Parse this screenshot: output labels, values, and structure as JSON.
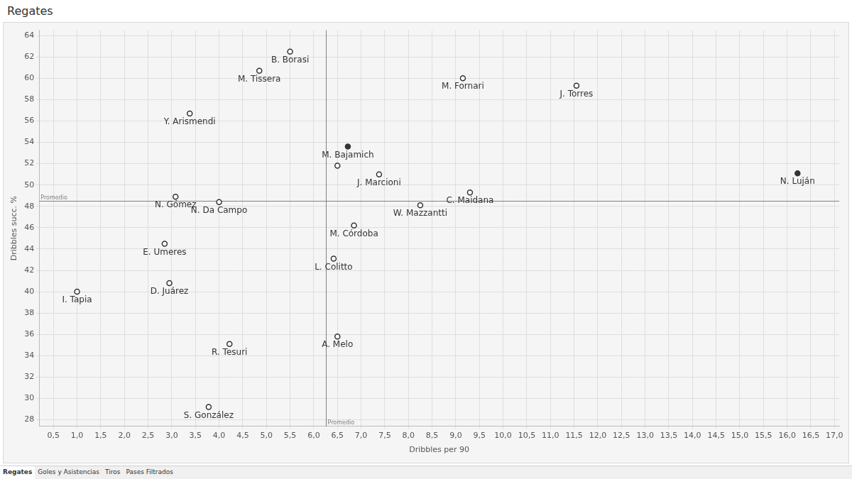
{
  "chart_data": {
    "type": "scatter",
    "title": "Regates",
    "x_label": "Dribbles per 90",
    "y_label": "Dribbles succ. %",
    "x": [
      5.5,
      4.85,
      9.15,
      11.55,
      3.38,
      6.72,
      6.5,
      7.38,
      16.22,
      9.3,
      3.08,
      4.0,
      8.25,
      6.85,
      2.85,
      6.42,
      1.0,
      2.95,
      6.5,
      4.22,
      3.78
    ],
    "values": [
      62.5,
      60.7,
      60.0,
      59.3,
      56.7,
      53.6,
      51.8,
      51.0,
      51.1,
      49.3,
      48.9,
      48.4,
      48.1,
      46.2,
      44.5,
      43.1,
      40.0,
      40.8,
      35.8,
      35.1,
      29.2
    ],
    "point_labels": [
      "B. Borasi",
      "M. Tissera",
      "M. Fornari",
      "J. Torres",
      "Y. Arismendi",
      "M. Bajamich",
      null,
      "J. Marcioni",
      "N. Luján",
      "C. Maidana",
      "N. Gómez",
      "N. Da Campo",
      "W. Mazzantti",
      "M. Córdoba",
      "E. Umeres",
      "L. Colitto",
      "I. Tapia",
      "D. Juárez",
      "A. Melo",
      "R. Tesuri",
      "S. González"
    ],
    "color": "#333333",
    "colors": [
      "#ffffff",
      "#ffffff",
      "#ffffff",
      "#ffffff",
      "#ffffff",
      "#333333",
      "#ffffff",
      "#ffffff",
      "#333333",
      "#ffffff",
      "#ffffff",
      "#ffffff",
      "#ffffff",
      "#ffffff",
      "#ffffff",
      "#ffffff",
      "#ffffff",
      "#ffffff",
      "#ffffff",
      "#ffffff",
      "#ffffff"
    ],
    "marker": "circle",
    "xlim": [
      0.2,
      17.1
    ],
    "ylim": [
      27.4,
      64.5
    ],
    "xticks": [
      {
        "value": 0.5,
        "label": "0,5"
      },
      {
        "value": 1.0,
        "label": "1,0"
      },
      {
        "value": 1.5,
        "label": "1,5"
      },
      {
        "value": 2.0,
        "label": "2,0"
      },
      {
        "value": 2.5,
        "label": "2,5"
      },
      {
        "value": 3.0,
        "label": "3,0"
      },
      {
        "value": 3.5,
        "label": "3,5"
      },
      {
        "value": 4.0,
        "label": "4,0"
      },
      {
        "value": 4.5,
        "label": "4,5"
      },
      {
        "value": 5.0,
        "label": "5,0"
      },
      {
        "value": 5.5,
        "label": "5,5"
      },
      {
        "value": 6.0,
        "label": "6,0"
      },
      {
        "value": 6.5,
        "label": "6,5"
      },
      {
        "value": 7.0,
        "label": "7,0"
      },
      {
        "value": 7.5,
        "label": "7,5"
      },
      {
        "value": 8.0,
        "label": "8,0"
      },
      {
        "value": 8.5,
        "label": "8,5"
      },
      {
        "value": 9.0,
        "label": "9,0"
      },
      {
        "value": 9.5,
        "label": "9,5"
      },
      {
        "value": 10.0,
        "label": "10,0"
      },
      {
        "value": 10.5,
        "label": "10,5"
      },
      {
        "value": 11.0,
        "label": "11,0"
      },
      {
        "value": 11.5,
        "label": "11,5"
      },
      {
        "value": 12.0,
        "label": "12,0"
      },
      {
        "value": 12.5,
        "label": "12,5"
      },
      {
        "value": 13.0,
        "label": "13,0"
      },
      {
        "value": 13.5,
        "label": "13,5"
      },
      {
        "value": 14.0,
        "label": "14,0"
      },
      {
        "value": 14.5,
        "label": "14,5"
      },
      {
        "value": 15.0,
        "label": "15,0"
      },
      {
        "value": 15.5,
        "label": "15,5"
      },
      {
        "value": 16.0,
        "label": "16,0"
      },
      {
        "value": 16.5,
        "label": "16,5"
      },
      {
        "value": 17.0,
        "label": "17,0"
      }
    ],
    "yticks": [
      28,
      30,
      32,
      34,
      36,
      38,
      40,
      42,
      44,
      46,
      48,
      50,
      52,
      54,
      56,
      58,
      60,
      62,
      64
    ],
    "annotations": [
      {
        "axis": "x",
        "value": 6.25,
        "label": "Promedio"
      },
      {
        "axis": "y",
        "value": 48.5,
        "label": "Promedio"
      }
    ],
    "grid": true
  },
  "tabs": [
    "Regates",
    "Goles y Asistencias",
    "Tiros",
    "Pases Filtrados"
  ]
}
